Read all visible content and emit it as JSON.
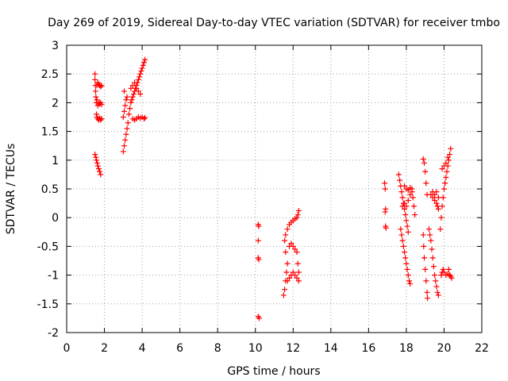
{
  "chart_data": {
    "type": "scatter",
    "title": "Day 269 of 2019, Sidereal Day-to-day VTEC variation (SDTVAR) for receiver tmbo",
    "xlabel": "GPS time / hours",
    "ylabel": "SDTVAR / TECUs",
    "xlim": [
      0,
      22
    ],
    "ylim": [
      -2,
      3
    ],
    "xticks": [
      0,
      2,
      4,
      6,
      8,
      10,
      12,
      14,
      16,
      18,
      20,
      22
    ],
    "yticks": [
      -2,
      -1.5,
      -1,
      -0.5,
      0,
      0.5,
      1,
      1.5,
      2,
      2.5,
      3
    ],
    "xtick_labels": [
      "0",
      "2",
      "4",
      "6",
      "8",
      "10",
      "12",
      "14",
      "16",
      "18",
      "20",
      "22"
    ],
    "ytick_labels": [
      "-2",
      "-1.5",
      "-1",
      "-0.5",
      "0",
      "0.5",
      "1",
      "1.5",
      "2",
      "2.5",
      "3"
    ],
    "grid": true,
    "marker": "+",
    "color": "#ff0000",
    "series": [
      {
        "name": "SDTVAR",
        "points": [
          [
            1.5,
            2.5
          ],
          [
            1.5,
            2.4
          ],
          [
            1.52,
            2.3
          ],
          [
            1.53,
            2.2
          ],
          [
            1.55,
            2.1
          ],
          [
            1.57,
            2.0
          ],
          [
            1.6,
            2.3
          ],
          [
            1.65,
            2.35
          ],
          [
            1.7,
            2.32
          ],
          [
            1.75,
            2.3
          ],
          [
            1.8,
            2.28
          ],
          [
            1.85,
            2.3
          ],
          [
            1.6,
            2.05
          ],
          [
            1.65,
            1.95
          ],
          [
            1.7,
            2.0
          ],
          [
            1.75,
            1.98
          ],
          [
            1.8,
            2.0
          ],
          [
            1.85,
            1.97
          ],
          [
            1.58,
            1.8
          ],
          [
            1.6,
            1.75
          ],
          [
            1.65,
            1.72
          ],
          [
            1.7,
            1.7
          ],
          [
            1.75,
            1.73
          ],
          [
            1.8,
            1.7
          ],
          [
            1.85,
            1.72
          ],
          [
            1.5,
            1.1
          ],
          [
            1.55,
            1.05
          ],
          [
            1.58,
            1.0
          ],
          [
            1.62,
            0.95
          ],
          [
            1.65,
            0.9
          ],
          [
            1.7,
            0.85
          ],
          [
            1.75,
            0.8
          ],
          [
            1.8,
            0.75
          ],
          [
            3.0,
            1.15
          ],
          [
            3.05,
            1.25
          ],
          [
            3.1,
            1.35
          ],
          [
            3.15,
            1.45
          ],
          [
            3.2,
            1.55
          ],
          [
            3.25,
            1.65
          ],
          [
            3.0,
            1.75
          ],
          [
            3.05,
            1.85
          ],
          [
            3.1,
            1.95
          ],
          [
            3.15,
            2.05
          ],
          [
            3.2,
            2.1
          ],
          [
            3.05,
            2.2
          ],
          [
            3.3,
            1.8
          ],
          [
            3.35,
            1.9
          ],
          [
            3.4,
            2.0
          ],
          [
            3.45,
            2.05
          ],
          [
            3.5,
            2.1
          ],
          [
            3.55,
            2.15
          ],
          [
            3.6,
            2.2
          ],
          [
            3.65,
            2.25
          ],
          [
            3.7,
            2.3
          ],
          [
            3.75,
            2.35
          ],
          [
            3.8,
            2.4
          ],
          [
            3.85,
            2.45
          ],
          [
            3.9,
            2.5
          ],
          [
            3.95,
            2.55
          ],
          [
            4.0,
            2.6
          ],
          [
            4.05,
            2.65
          ],
          [
            4.1,
            2.7
          ],
          [
            4.15,
            2.75
          ],
          [
            3.4,
            2.25
          ],
          [
            3.5,
            2.3
          ],
          [
            3.6,
            2.35
          ],
          [
            3.7,
            2.25
          ],
          [
            3.8,
            2.2
          ],
          [
            3.9,
            2.15
          ],
          [
            3.5,
            1.72
          ],
          [
            3.6,
            1.7
          ],
          [
            3.7,
            1.72
          ],
          [
            3.8,
            1.75
          ],
          [
            3.9,
            1.73
          ],
          [
            4.0,
            1.75
          ],
          [
            4.1,
            1.72
          ],
          [
            4.15,
            1.74
          ],
          [
            10.15,
            -0.12
          ],
          [
            10.18,
            -0.15
          ],
          [
            10.15,
            -0.4
          ],
          [
            10.15,
            -0.7
          ],
          [
            10.18,
            -0.73
          ],
          [
            10.15,
            -1.72
          ],
          [
            10.2,
            -1.75
          ],
          [
            11.5,
            -1.35
          ],
          [
            11.55,
            -1.25
          ],
          [
            11.6,
            -1.1
          ],
          [
            11.65,
            -0.95
          ],
          [
            11.7,
            -0.8
          ],
          [
            11.6,
            -0.6
          ],
          [
            11.55,
            -0.4
          ],
          [
            11.6,
            -0.3
          ],
          [
            11.7,
            -0.2
          ],
          [
            11.8,
            -0.12
          ],
          [
            11.9,
            -0.08
          ],
          [
            12.0,
            -0.05
          ],
          [
            12.1,
            -0.02
          ],
          [
            12.2,
            0.0
          ],
          [
            12.25,
            0.05
          ],
          [
            12.3,
            0.12
          ],
          [
            11.7,
            -1.1
          ],
          [
            11.8,
            -1.05
          ],
          [
            11.9,
            -1.0
          ],
          [
            12.0,
            -0.95
          ],
          [
            12.1,
            -1.0
          ],
          [
            12.2,
            -1.05
          ],
          [
            12.3,
            -1.1
          ],
          [
            11.8,
            -0.5
          ],
          [
            11.9,
            -0.45
          ],
          [
            12.0,
            -0.5
          ],
          [
            12.1,
            -0.55
          ],
          [
            12.2,
            -0.6
          ],
          [
            12.25,
            -0.8
          ],
          [
            12.3,
            -0.95
          ],
          [
            16.85,
            0.6
          ],
          [
            16.88,
            0.5
          ],
          [
            16.9,
            0.15
          ],
          [
            16.88,
            0.1
          ],
          [
            16.9,
            -0.15
          ],
          [
            16.92,
            -0.18
          ],
          [
            17.6,
            0.75
          ],
          [
            17.65,
            0.65
          ],
          [
            17.7,
            0.55
          ],
          [
            17.75,
            0.45
          ],
          [
            17.8,
            0.35
          ],
          [
            17.85,
            0.25
          ],
          [
            17.9,
            0.15
          ],
          [
            17.95,
            0.05
          ],
          [
            18.0,
            -0.05
          ],
          [
            18.05,
            -0.15
          ],
          [
            18.1,
            -0.25
          ],
          [
            17.7,
            -0.2
          ],
          [
            17.75,
            -0.3
          ],
          [
            17.8,
            -0.4
          ],
          [
            17.85,
            -0.5
          ],
          [
            17.9,
            -0.6
          ],
          [
            17.95,
            -0.7
          ],
          [
            18.0,
            -0.8
          ],
          [
            18.05,
            -0.9
          ],
          [
            18.1,
            -1.0
          ],
          [
            18.15,
            -1.1
          ],
          [
            18.2,
            -1.15
          ],
          [
            17.8,
            0.2
          ],
          [
            17.9,
            0.25
          ],
          [
            18.0,
            0.2
          ],
          [
            18.1,
            0.3
          ],
          [
            18.2,
            0.4
          ],
          [
            18.3,
            0.5
          ],
          [
            18.35,
            0.35
          ],
          [
            18.4,
            0.2
          ],
          [
            18.45,
            0.05
          ],
          [
            17.9,
            0.55
          ],
          [
            18.0,
            0.5
          ],
          [
            18.1,
            0.48
          ],
          [
            18.2,
            0.52
          ],
          [
            18.3,
            0.45
          ],
          [
            18.9,
            1.02
          ],
          [
            18.95,
            0.95
          ],
          [
            19.0,
            0.8
          ],
          [
            19.05,
            0.6
          ],
          [
            19.1,
            0.4
          ],
          [
            18.9,
            -0.3
          ],
          [
            18.92,
            -0.5
          ],
          [
            18.95,
            -0.7
          ],
          [
            19.0,
            -0.9
          ],
          [
            19.05,
            -1.1
          ],
          [
            19.1,
            -1.3
          ],
          [
            19.12,
            -1.4
          ],
          [
            19.2,
            -0.2
          ],
          [
            19.25,
            -0.3
          ],
          [
            19.3,
            -0.4
          ],
          [
            19.35,
            -0.55
          ],
          [
            19.4,
            -0.7
          ],
          [
            19.45,
            -0.85
          ],
          [
            19.5,
            -1.0
          ],
          [
            19.55,
            -1.1
          ],
          [
            19.6,
            -1.2
          ],
          [
            19.65,
            -1.3
          ],
          [
            19.7,
            -1.35
          ],
          [
            19.3,
            0.4
          ],
          [
            19.4,
            0.35
          ],
          [
            19.5,
            0.3
          ],
          [
            19.6,
            0.25
          ],
          [
            19.65,
            0.2
          ],
          [
            19.7,
            0.15
          ],
          [
            19.4,
            0.45
          ],
          [
            19.5,
            0.4
          ],
          [
            19.6,
            0.45
          ],
          [
            19.7,
            0.35
          ],
          [
            19.8,
            -0.2
          ],
          [
            19.85,
            0.0
          ],
          [
            19.9,
            0.2
          ],
          [
            19.95,
            0.35
          ],
          [
            20.0,
            0.5
          ],
          [
            20.05,
            0.6
          ],
          [
            20.1,
            0.7
          ],
          [
            20.15,
            0.8
          ],
          [
            20.2,
            0.9
          ],
          [
            20.25,
            1.0
          ],
          [
            20.3,
            1.1
          ],
          [
            20.35,
            1.2
          ],
          [
            19.9,
            0.85
          ],
          [
            20.0,
            0.9
          ],
          [
            20.1,
            0.95
          ],
          [
            20.2,
            1.05
          ],
          [
            20.0,
            -0.95
          ],
          [
            20.1,
            -1.0
          ],
          [
            20.2,
            -0.98
          ],
          [
            20.25,
            -0.9
          ],
          [
            20.3,
            -1.0
          ],
          [
            20.35,
            -1.02
          ],
          [
            20.4,
            -1.05
          ],
          [
            19.85,
            -1.0
          ],
          [
            19.9,
            -0.95
          ],
          [
            19.95,
            -0.9
          ]
        ]
      }
    ]
  }
}
